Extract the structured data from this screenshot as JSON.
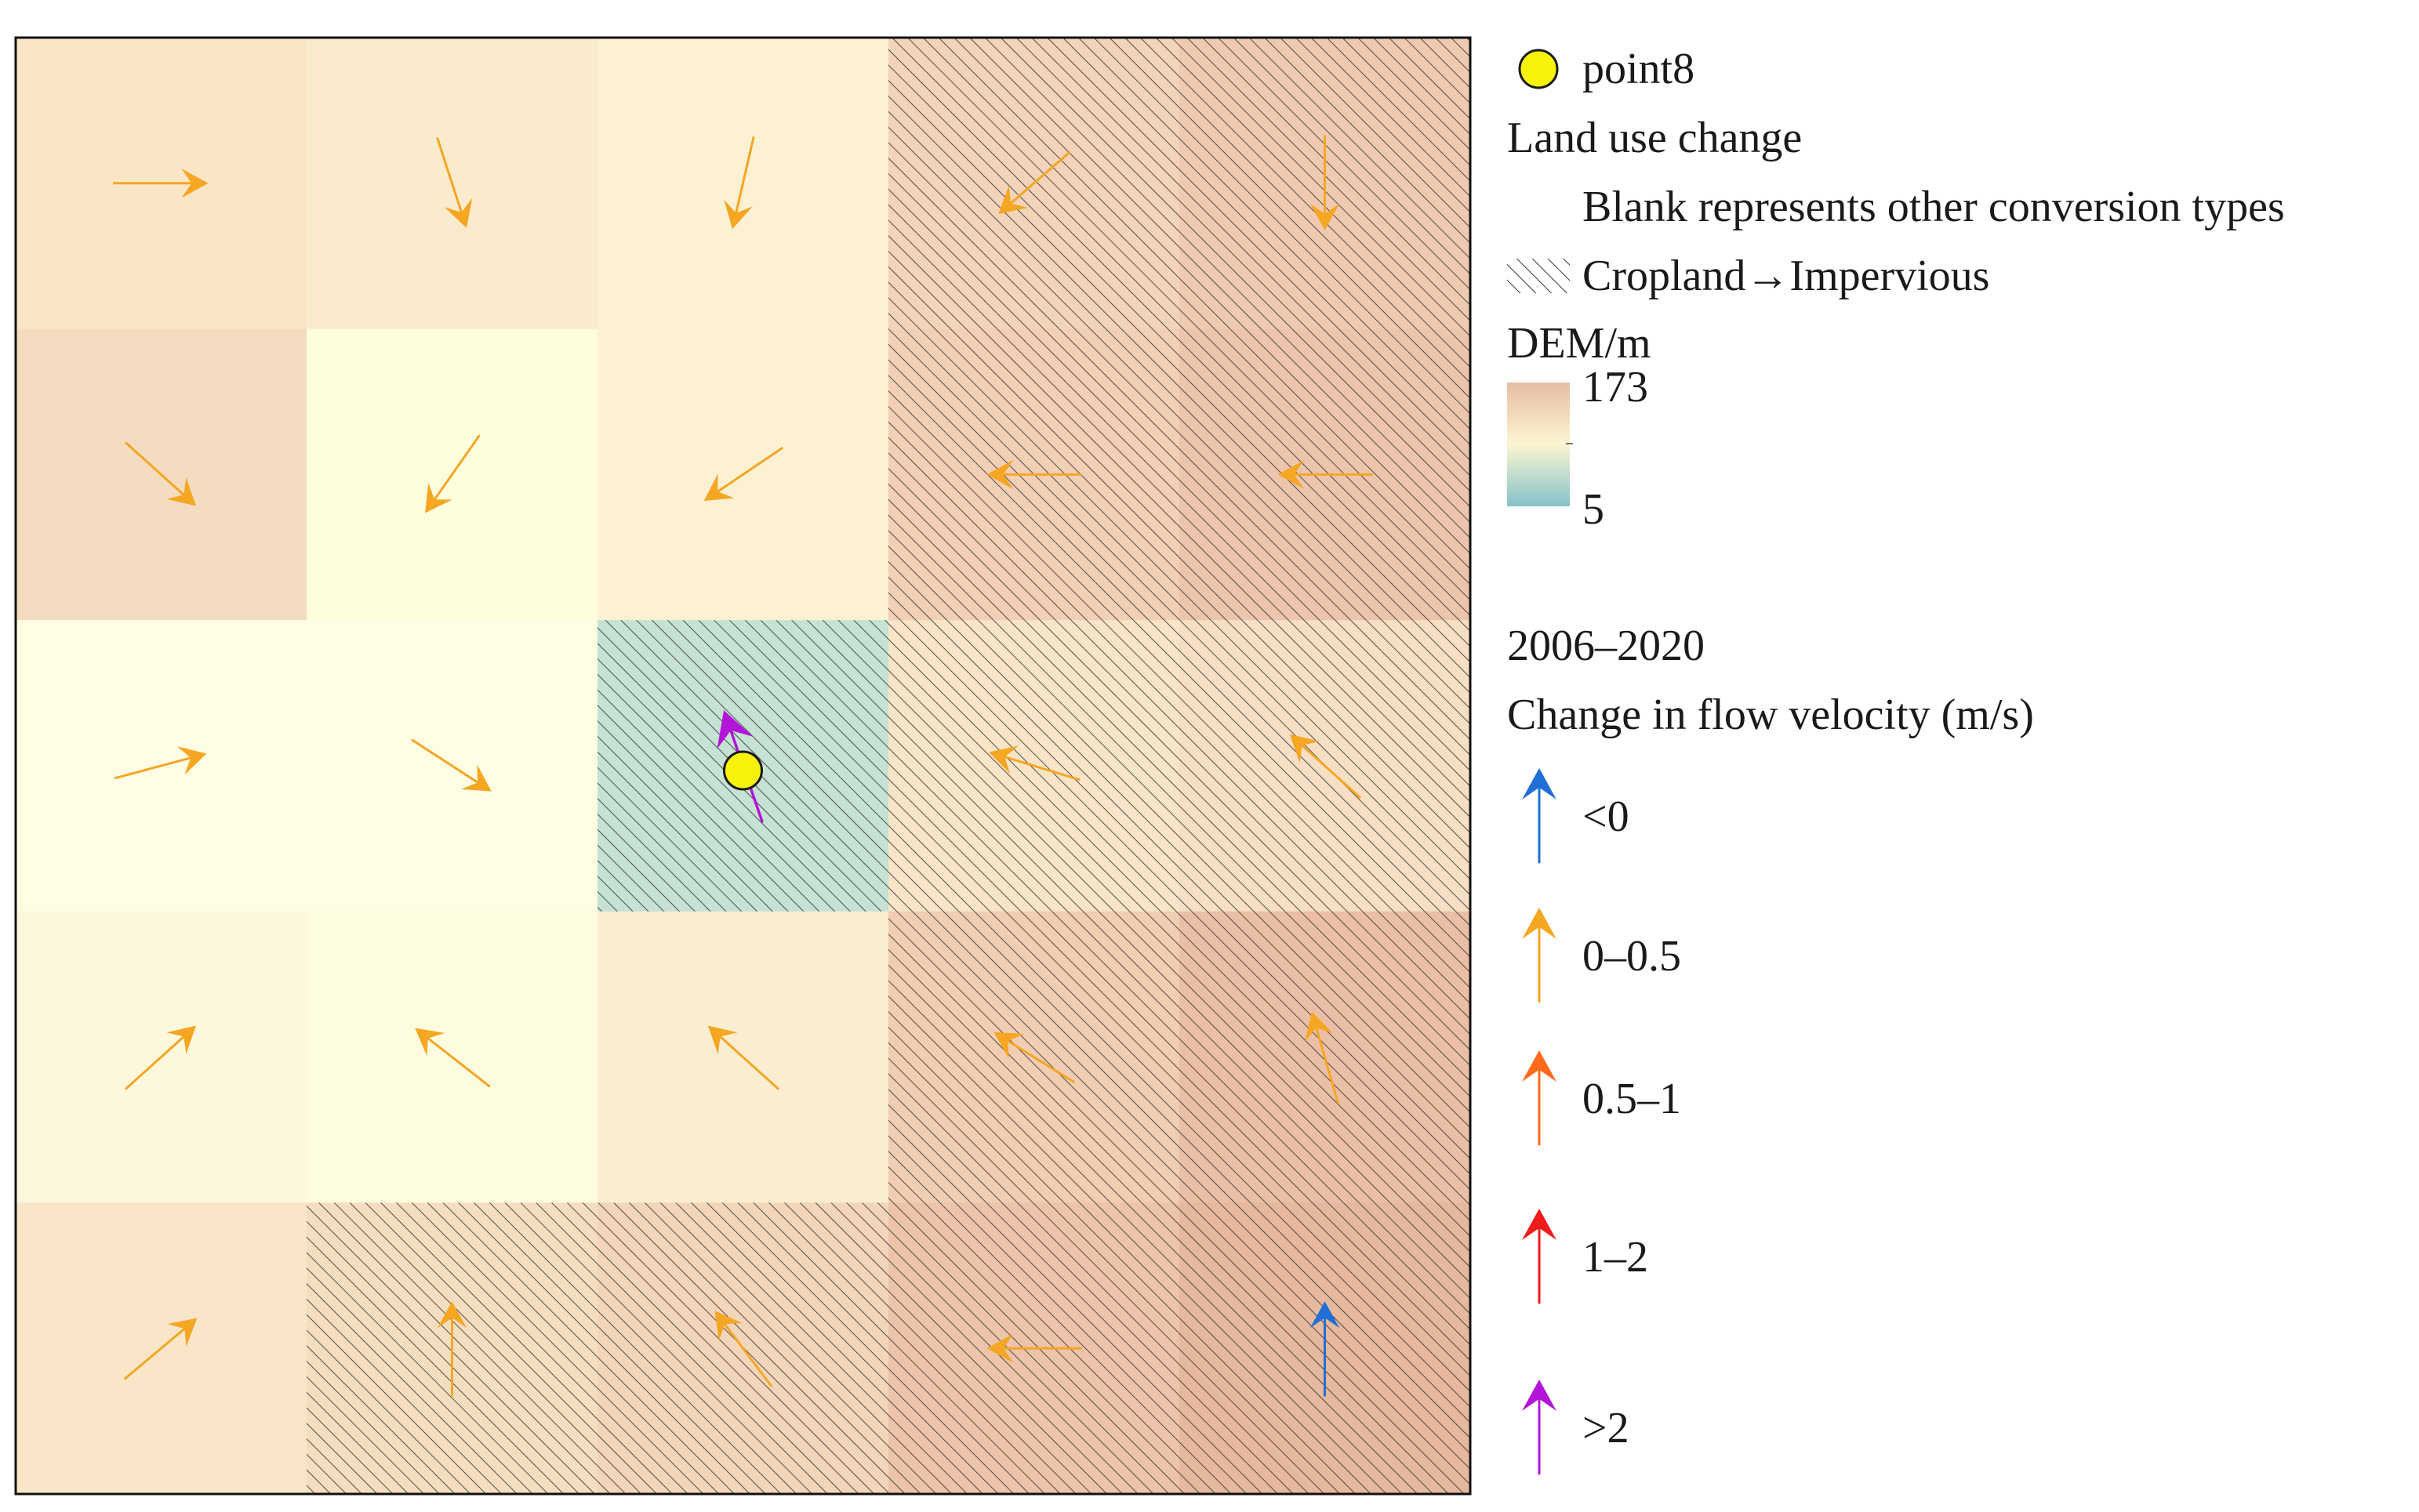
{
  "legend": {
    "point_label": "point8",
    "landuse_title": "Land use change",
    "blank_label": "Blank represents other conversion types",
    "hatch_label": "Cropland→Impervious",
    "dem_title": "DEM/m",
    "dem_max": "173",
    "dem_min": "5",
    "period": "2006–2020",
    "velocity_title": "Change in flow velocity (m/s)",
    "classes": [
      {
        "label": "<0",
        "color": "#1f6fd6"
      },
      {
        "label": "0–0.5",
        "color": "#f5a623"
      },
      {
        "label": "0.5–1",
        "color": "#ff6a1a"
      },
      {
        "label": "1–2",
        "color": "#ef1a1a"
      },
      {
        "label": ">2",
        "color": "#b215d8"
      }
    ]
  },
  "colors": {
    "point": "#f7f20a",
    "hatch": "#333333",
    "dem_ramp": [
      "#e6bda5",
      "#fbf5d2",
      "#86c3c8"
    ]
  },
  "map": {
    "rows": 5,
    "cols": 5,
    "cell_colors": [
      [
        "#fae5c6",
        "#faebcc",
        "#fcf1d2",
        "#f3d3b9",
        "#efcab1"
      ],
      [
        "#f3dcbf",
        "#fefdde",
        "#fcf1d2",
        "#f2cfb5",
        "#edc5ac"
      ],
      [
        "#fffde3",
        "#fffde3",
        "#c5e2d4",
        "#f8e4c7",
        "#f6dfc3"
      ],
      [
        "#fdf8dc",
        "#fefcdf",
        "#fbeed0",
        "#f1cdb2",
        "#ebbfa5"
      ],
      [
        "#f9e6c9",
        "#f5dec0",
        "#f3d5ba",
        "#edc4aa",
        "#e6b89d"
      ]
    ],
    "hatched": [
      [
        false,
        false,
        false,
        true,
        true
      ],
      [
        false,
        false,
        false,
        true,
        true
      ],
      [
        false,
        false,
        true,
        true,
        true
      ],
      [
        false,
        false,
        false,
        true,
        true
      ],
      [
        false,
        true,
        true,
        true,
        true
      ]
    ],
    "arrows": [
      {
        "row": 0,
        "col": 0,
        "angle": 0,
        "class": 1
      },
      {
        "row": 0,
        "col": 1,
        "angle": 72,
        "class": 1
      },
      {
        "row": 0,
        "col": 2,
        "angle": 103,
        "class": 1
      },
      {
        "row": 0,
        "col": 3,
        "angle": 139,
        "class": 1
      },
      {
        "row": 0,
        "col": 4,
        "angle": 90,
        "class": 1
      },
      {
        "row": 1,
        "col": 0,
        "angle": 42,
        "class": 1
      },
      {
        "row": 1,
        "col": 1,
        "angle": 125,
        "class": 1
      },
      {
        "row": 1,
        "col": 2,
        "angle": 146,
        "class": 1
      },
      {
        "row": 1,
        "col": 3,
        "angle": 180,
        "class": 1
      },
      {
        "row": 1,
        "col": 4,
        "angle": 180,
        "class": 1
      },
      {
        "row": 2,
        "col": 0,
        "angle": -15,
        "class": 1
      },
      {
        "row": 2,
        "col": 1,
        "angle": 33,
        "class": 1
      },
      {
        "row": 2,
        "col": 2,
        "angle": -109,
        "class": 4
      },
      {
        "row": 2,
        "col": 3,
        "angle": 197,
        "class": 1
      },
      {
        "row": 2,
        "col": 4,
        "angle": 222,
        "class": 1
      },
      {
        "row": 3,
        "col": 0,
        "angle": -42,
        "class": 1
      },
      {
        "row": 3,
        "col": 1,
        "angle": 218,
        "class": 1
      },
      {
        "row": 3,
        "col": 2,
        "angle": 222,
        "class": 1
      },
      {
        "row": 3,
        "col": 3,
        "angle": 212,
        "class": 1
      },
      {
        "row": 3,
        "col": 4,
        "angle": 254,
        "class": 1
      },
      {
        "row": 4,
        "col": 0,
        "angle": -40,
        "class": 1
      },
      {
        "row": 4,
        "col": 1,
        "angle": -90,
        "class": 1
      },
      {
        "row": 4,
        "col": 2,
        "angle": 233,
        "class": 1
      },
      {
        "row": 4,
        "col": 3,
        "angle": 180,
        "class": 1
      },
      {
        "row": 4,
        "col": 4,
        "angle": -90,
        "class": 0
      }
    ],
    "point": {
      "row": 2,
      "col": 2
    }
  }
}
